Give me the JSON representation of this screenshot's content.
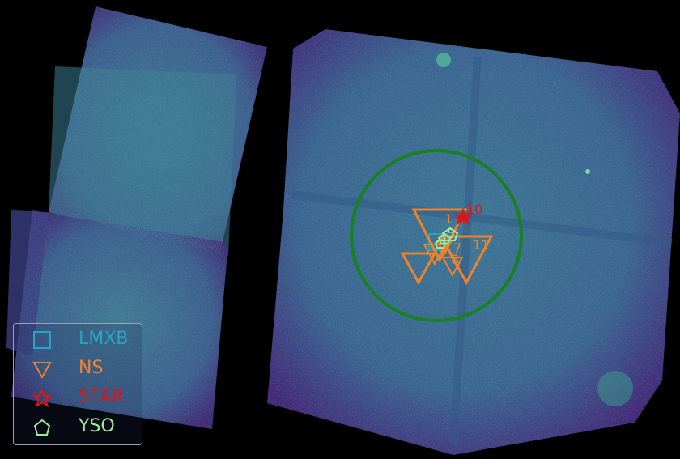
{
  "colors": {
    "background": "#000000",
    "field_low": "#3e1f6c",
    "field_mid": "#3a6f92",
    "field_high": "#2f8f8a",
    "circle": "#17821f",
    "lmxb": "#27a6c4",
    "ns": "#f28227",
    "star": "#e01616",
    "yso": "#9ee8a0"
  },
  "sources": [
    {
      "type": "NS",
      "label": "1"
    },
    {
      "type": "STAR",
      "label": "10"
    },
    {
      "type": "NS",
      "label": "11"
    },
    {
      "type": "NS",
      "label": "8"
    },
    {
      "type": "NS",
      "label": "7"
    },
    {
      "type": "YSO",
      "label": "5"
    }
  ],
  "legend": [
    {
      "marker": "square",
      "icon": "square-icon",
      "label": "LMXB",
      "color": "#27a6c4"
    },
    {
      "marker": "triangle-down",
      "icon": "triangle-down-icon",
      "label": "NS",
      "color": "#f28227"
    },
    {
      "marker": "star",
      "icon": "star-icon",
      "label": "STAR",
      "color": "#e01616"
    },
    {
      "marker": "pentagon",
      "icon": "pentagon-icon",
      "label": "YSO",
      "color": "#9ee8a0"
    }
  ]
}
